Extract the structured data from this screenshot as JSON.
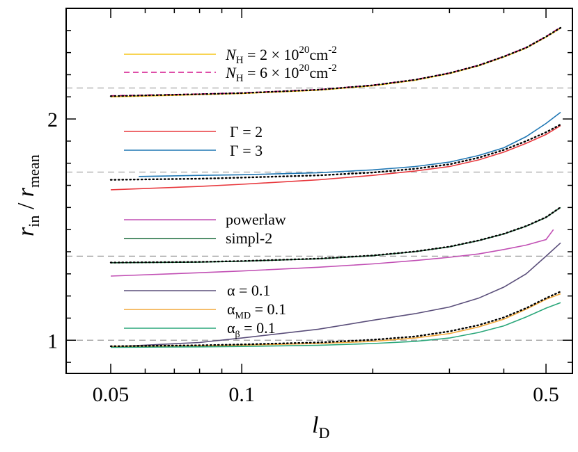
{
  "chart_data": {
    "type": "line",
    "xlabel": "l_D",
    "ylabel": "r_in / r_mean",
    "x_scale": "log",
    "xlim": [
      0.0395,
      0.575
    ],
    "ylim": [
      0.85,
      2.5
    ],
    "x_ticks": [
      {
        "value": 0.05,
        "label": "0.05"
      },
      {
        "value": 0.1,
        "label": "0.1"
      },
      {
        "value": 0.5,
        "label": "0.5"
      }
    ],
    "y_ticks": [
      {
        "value": 1,
        "label": "1"
      },
      {
        "value": 2,
        "label": "2"
      }
    ],
    "reference_lines": [
      1.0,
      1.38,
      1.76,
      2.14
    ],
    "groups": [
      {
        "reference": 2.14,
        "series": [
          {
            "name": "N_H = 2 × 10^20 cm^-2",
            "color": "#f5c518",
            "dash": "solid",
            "x": [
              0.05,
              0.08,
              0.1,
              0.15,
              0.2,
              0.25,
              0.3,
              0.35,
              0.4,
              0.45,
              0.5,
              0.54
            ],
            "y": [
              2.1,
              2.11,
              2.115,
              2.13,
              2.15,
              2.175,
              2.205,
              2.24,
              2.28,
              2.32,
              2.37,
              2.41
            ]
          },
          {
            "name": "N_H = 6 × 10^20 cm^-2",
            "color": "#d4148c",
            "dash": "dashed",
            "x": [
              0.05,
              0.08,
              0.1,
              0.15,
              0.2,
              0.25,
              0.3,
              0.35,
              0.4,
              0.45,
              0.5,
              0.54
            ],
            "y": [
              2.105,
              2.113,
              2.118,
              2.133,
              2.153,
              2.178,
              2.208,
              2.243,
              2.283,
              2.323,
              2.373,
              2.415
            ]
          },
          {
            "name": "",
            "color": "#000000",
            "dash": "dotted",
            "x": [
              0.05,
              0.08,
              0.1,
              0.15,
              0.2,
              0.25,
              0.3,
              0.35,
              0.4,
              0.45,
              0.5,
              0.54
            ],
            "y": [
              2.103,
              2.112,
              2.117,
              2.132,
              2.152,
              2.177,
              2.207,
              2.242,
              2.282,
              2.322,
              2.372,
              2.412
            ]
          }
        ]
      },
      {
        "reference": 1.76,
        "series": [
          {
            "name": "Γ = 2",
            "color": "#e8383d",
            "dash": "solid",
            "x": [
              0.05,
              0.08,
              0.1,
              0.15,
              0.2,
              0.25,
              0.3,
              0.35,
              0.4,
              0.45,
              0.5,
              0.54
            ],
            "y": [
              1.68,
              1.695,
              1.705,
              1.725,
              1.745,
              1.765,
              1.785,
              1.815,
              1.85,
              1.89,
              1.93,
              1.97
            ]
          },
          {
            "name": "Γ = 3",
            "color": "#1f77b4",
            "dash": "solid",
            "x": [
              0.058,
              0.08,
              0.1,
              0.15,
              0.2,
              0.25,
              0.3,
              0.35,
              0.4,
              0.45,
              0.5,
              0.54
            ],
            "y": [
              1.74,
              1.745,
              1.748,
              1.757,
              1.77,
              1.785,
              1.805,
              1.835,
              1.87,
              1.92,
              1.98,
              2.03
            ]
          },
          {
            "name": "",
            "color": "#000000",
            "dash": "dotted",
            "x": [
              0.05,
              0.08,
              0.1,
              0.15,
              0.2,
              0.25,
              0.3,
              0.35,
              0.4,
              0.45,
              0.5,
              0.54
            ],
            "y": [
              1.725,
              1.73,
              1.735,
              1.745,
              1.758,
              1.775,
              1.795,
              1.825,
              1.86,
              1.9,
              1.94,
              1.975
            ]
          }
        ]
      },
      {
        "reference": 1.38,
        "series": [
          {
            "name": "powerlaw",
            "color": "#c14fb4",
            "dash": "solid",
            "x": [
              0.05,
              0.08,
              0.1,
              0.15,
              0.2,
              0.25,
              0.3,
              0.35,
              0.4,
              0.45,
              0.5,
              0.52
            ],
            "y": [
              1.29,
              1.305,
              1.313,
              1.33,
              1.345,
              1.36,
              1.375,
              1.39,
              1.41,
              1.43,
              1.455,
              1.5
            ]
          },
          {
            "name": "simpl-2",
            "color": "#1a6b3c",
            "dash": "solid",
            "x": [
              0.05,
              0.08,
              0.1,
              0.15,
              0.2,
              0.25,
              0.3,
              0.35,
              0.4,
              0.45,
              0.5,
              0.54
            ],
            "y": [
              1.35,
              1.353,
              1.357,
              1.368,
              1.382,
              1.4,
              1.422,
              1.45,
              1.48,
              1.515,
              1.555,
              1.6
            ]
          },
          {
            "name": "",
            "color": "#000000",
            "dash": "dotted",
            "x": [
              0.05,
              0.08,
              0.1,
              0.15,
              0.2,
              0.25,
              0.3,
              0.35,
              0.4,
              0.45,
              0.5,
              0.54
            ],
            "y": [
              1.351,
              1.354,
              1.358,
              1.369,
              1.383,
              1.401,
              1.423,
              1.451,
              1.481,
              1.516,
              1.556,
              1.601
            ]
          }
        ]
      },
      {
        "reference": 1.0,
        "series": [
          {
            "name": "α = 0.1",
            "color": "#5a4e7a",
            "dash": "solid",
            "x": [
              0.05,
              0.08,
              0.1,
              0.15,
              0.2,
              0.25,
              0.3,
              0.35,
              0.4,
              0.45,
              0.5,
              0.54
            ],
            "y": [
              0.97,
              0.99,
              1.01,
              1.05,
              1.09,
              1.12,
              1.15,
              1.19,
              1.24,
              1.3,
              1.38,
              1.44
            ]
          },
          {
            "name": "α_MD = 0.1",
            "color": "#f2a93b",
            "dash": "solid",
            "x": [
              0.05,
              0.08,
              0.1,
              0.15,
              0.2,
              0.25,
              0.3,
              0.35,
              0.4,
              0.45,
              0.5,
              0.54
            ],
            "y": [
              0.972,
              0.975,
              0.978,
              0.985,
              0.995,
              1.01,
              1.03,
              1.06,
              1.095,
              1.14,
              1.185,
              1.21
            ]
          },
          {
            "name": "α_β = 0.1",
            "color": "#2aa77a",
            "dash": "solid",
            "x": [
              0.05,
              0.08,
              0.1,
              0.15,
              0.2,
              0.25,
              0.3,
              0.35,
              0.4,
              0.45,
              0.5,
              0.54
            ],
            "y": [
              0.968,
              0.97,
              0.972,
              0.977,
              0.985,
              0.995,
              1.01,
              1.035,
              1.065,
              1.105,
              1.145,
              1.17
            ]
          },
          {
            "name": "",
            "color": "#000000",
            "dash": "dotted",
            "x": [
              0.05,
              0.08,
              0.1,
              0.15,
              0.2,
              0.25,
              0.3,
              0.35,
              0.4,
              0.45,
              0.5,
              0.54
            ],
            "y": [
              0.973,
              0.977,
              0.981,
              0.99,
              1.002,
              1.017,
              1.04,
              1.068,
              1.103,
              1.145,
              1.19,
              1.22
            ]
          }
        ]
      }
    ]
  }
}
